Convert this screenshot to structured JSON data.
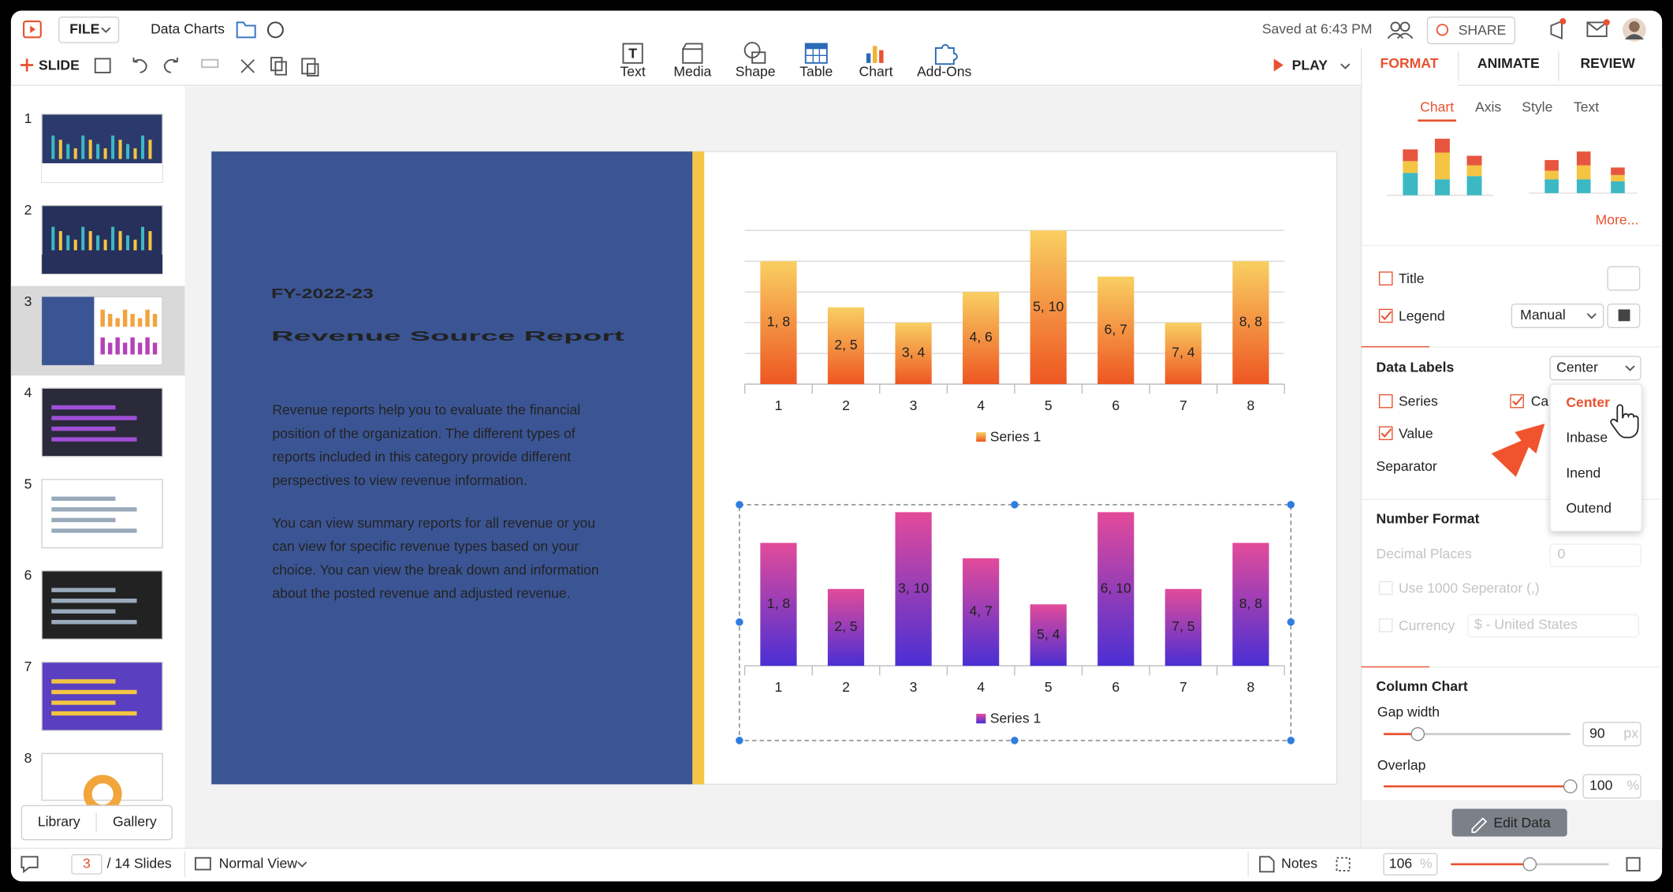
{
  "app": {
    "file_menu": "FILE",
    "document_title": "Data Charts",
    "saved_status": "Saved at 6:43 PM",
    "share": "SHARE",
    "new_slide": "SLIDE",
    "insert_tools": [
      "Text",
      "Media",
      "Shape",
      "Table",
      "Chart",
      "Add-Ons"
    ],
    "play": "PLAY"
  },
  "slides_panel": {
    "slide_numbers": [
      1,
      2,
      3,
      4,
      5,
      6,
      7,
      8
    ],
    "tabs": [
      "Library",
      "Gallery"
    ]
  },
  "slide": {
    "subtitle": "FY-2022-23",
    "title": "Revenue Source Report",
    "paragraphs": [
      [
        "Revenue reports help you to evaluate the financial",
        "position of the organization. The different types of",
        "reports included in this category provide different",
        "perspectives to view revenue information."
      ],
      [
        "You can view summary reports for all revenue or you",
        "can view for specific revenue types based on your",
        "choice. You can view the break down and information",
        "about the posted revenue and adjusted revenue."
      ]
    ]
  },
  "chart_data": [
    {
      "type": "bar",
      "categories": [
        "1",
        "2",
        "3",
        "4",
        "5",
        "6",
        "7",
        "8"
      ],
      "series": [
        {
          "name": "Series 1",
          "color": [
            "#f9cf62",
            "#ee5622"
          ],
          "values": [
            8,
            5,
            4,
            6,
            10,
            7,
            4,
            8
          ],
          "value_labels": [
            "1, 8",
            "2, 5",
            "3, 4",
            "4, 6",
            "5, 10",
            "6, 7",
            "7, 4",
            "8, 8"
          ]
        }
      ],
      "ylim": [
        0,
        10
      ],
      "yticks": [
        0,
        2,
        4,
        6,
        8,
        10
      ],
      "grid": true,
      "legend": "bottom"
    },
    {
      "type": "bar",
      "categories": [
        "1",
        "2",
        "3",
        "4",
        "5",
        "6",
        "7",
        "8"
      ],
      "series": [
        {
          "name": "Series 1",
          "color": [
            "#e34b9a",
            "#4a2fd4"
          ],
          "values": [
            8,
            5,
            10,
            7,
            4,
            10,
            5,
            8
          ],
          "value_labels": [
            "1, 8",
            "2, 5",
            "3, 10",
            "4, 7",
            "5, 4",
            "6, 10",
            "7, 5",
            "8, 8"
          ]
        }
      ],
      "ylim": [
        0,
        10
      ],
      "grid": false,
      "legend": "bottom"
    }
  ],
  "format_panel": {
    "tabs": [
      "FORMAT",
      "ANIMATE",
      "REVIEW"
    ],
    "sub_tabs": [
      "Chart",
      "Axis",
      "Style",
      "Text"
    ],
    "more": "More...",
    "title_option": "Title",
    "legend_option": "Legend",
    "legend_position": "Manual",
    "data_labels": {
      "heading": "Data Labels",
      "position": "Center",
      "series": "Series",
      "category": "Ca",
      "value": "Value",
      "separator": "Separator",
      "position_options": [
        "Center",
        "Inbase",
        "Inend",
        "Outend"
      ]
    },
    "number_format": {
      "heading": "Number Format",
      "decimal_places": "Decimal Places",
      "decimal_value": 0,
      "thousands_separator": "Use 1000 Seperator (,)",
      "currency": "Currency",
      "currency_value": "$ - United States"
    },
    "column_chart": {
      "heading": "Column Chart",
      "gap_width": "Gap width",
      "gap_width_value": 90,
      "gap_unit": "px",
      "overlap": "Overlap",
      "overlap_value": 100,
      "overlap_unit": "%"
    },
    "edit_data": "Edit Data"
  },
  "status_bar": {
    "current_slide": 3,
    "slide_count": "/ 14 Slides",
    "view": "Normal View",
    "notes": "Notes",
    "zoom": 106,
    "zoom_unit": "%"
  }
}
